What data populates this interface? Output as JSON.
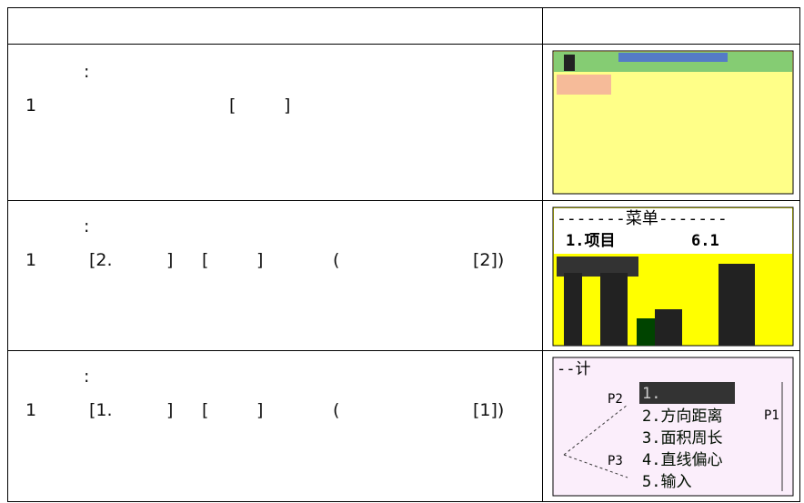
{
  "table": {
    "rows": [
      {
        "lines": [
          [
            ":"
          ],
          [
            "1",
            "[",
            "]"
          ]
        ],
        "screen": {
          "texts": []
        }
      },
      {
        "lines": [
          [
            ":"
          ],
          [
            "1",
            "[2.",
            "]",
            "[",
            "]",
            "(",
            "[2])"
          ]
        ],
        "screen": {
          "texts": [
            "-------菜单-------",
            "1.项目",
            "6.1"
          ]
        }
      },
      {
        "lines": [
          [
            ":"
          ],
          [
            "1",
            "[1.",
            "]",
            "[",
            "]",
            "(",
            "[1])"
          ]
        ],
        "screen": {
          "texts": [
            "--计",
            "P2",
            "1.",
            "2.方向距离",
            "3.面积周长",
            "P3",
            "4.直线偏心",
            "5.输入",
            "P1"
          ]
        }
      }
    ]
  }
}
